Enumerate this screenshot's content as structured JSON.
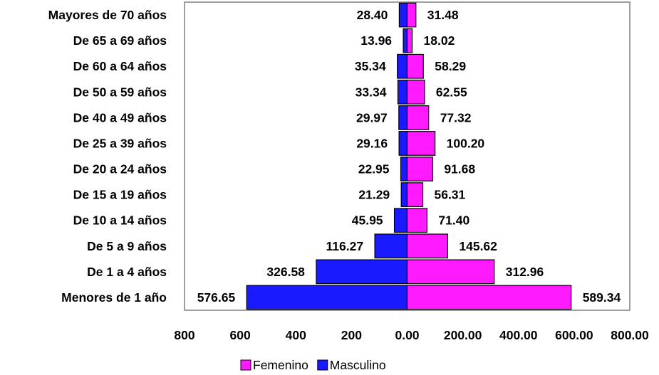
{
  "chart_data": {
    "type": "bar",
    "orientation": "horizontal",
    "layout": "population-pyramid",
    "categories": [
      "Mayores de 70 años",
      "De 65 a 69 años",
      "De 60 a 64 años",
      "De 50 a 59 años",
      "De 40 a 49 años",
      "De 25 a 39 años",
      "De 20 a 24 años",
      "De 15 a 19 años",
      "De 10 a 14 años",
      "De 5 a 9 años",
      "De 1 a 4 años",
      "Menores de 1 año"
    ],
    "series": [
      {
        "name": "Masculino",
        "color": "#1A1AFF",
        "side": "left",
        "values": [
          28.4,
          13.96,
          35.34,
          33.34,
          29.97,
          29.16,
          22.95,
          21.29,
          45.95,
          116.27,
          326.58,
          576.65
        ],
        "labels": [
          "28.40",
          "13.96",
          "35.34",
          "33.34",
          "29.97",
          "29.16",
          "22.95",
          "21.29",
          "45.95",
          "116.27",
          "326.58",
          "576.65"
        ]
      },
      {
        "name": "Femenino",
        "color": "#FF1AFF",
        "side": "right",
        "values": [
          31.48,
          18.02,
          58.29,
          62.55,
          77.32,
          100.2,
          91.68,
          56.31,
          71.4,
          145.62,
          312.96,
          589.34
        ],
        "labels": [
          "31.48",
          "18.02",
          "58.29",
          "62.55",
          "77.32",
          "100.20",
          "91.68",
          "56.31",
          "71.40",
          "145.62",
          "312.96",
          "589.34"
        ]
      }
    ],
    "xlim": [
      -800,
      800
    ],
    "xticks": [
      -800,
      -600,
      -400,
      -200,
      0,
      200,
      400,
      600,
      800
    ],
    "xtick_labels": [
      "800",
      "600",
      "400",
      "200",
      "0.00",
      "200.00",
      "400.00",
      "600.00",
      "800.00"
    ],
    "legend_order": [
      "Femenino",
      "Masculino"
    ],
    "legend_position": "bottom",
    "grid": false
  }
}
